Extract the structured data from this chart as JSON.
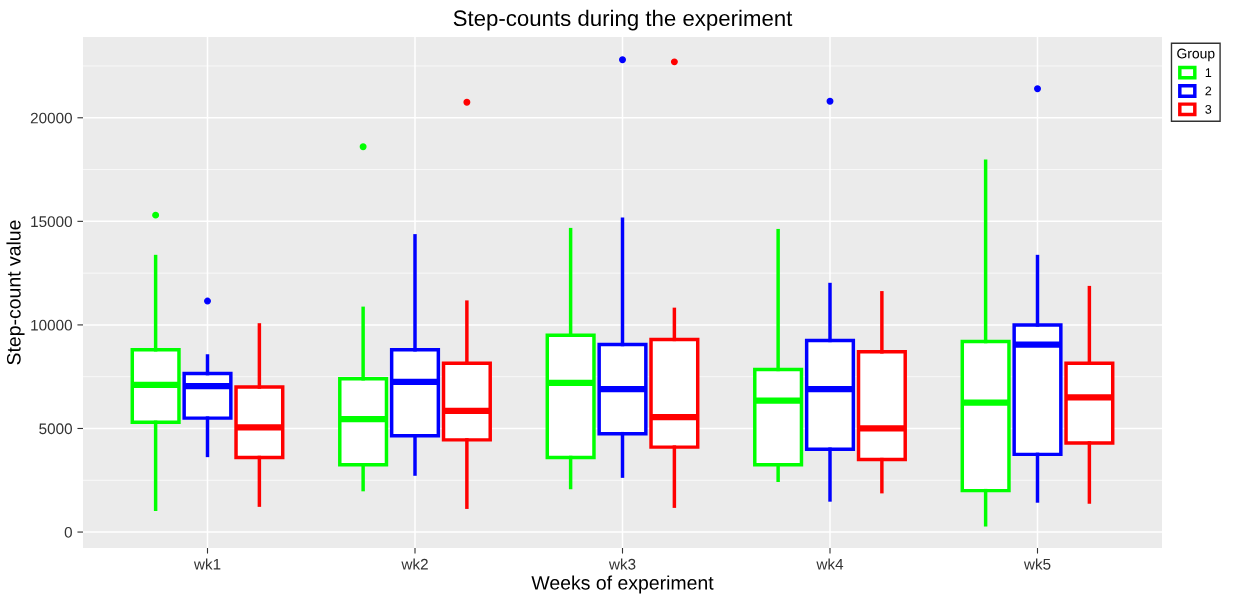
{
  "chart_data": {
    "type": "box",
    "title": "Step-counts during the experiment",
    "xlabel": "Weeks of experiment",
    "ylabel": "Step-count value",
    "legend_title": "Group",
    "categories": [
      "wk1",
      "wk2",
      "wk3",
      "wk4",
      "wk5"
    ],
    "ylim": [
      -770,
      23900
    ],
    "yticks": [
      0,
      5000,
      10000,
      15000,
      20000
    ],
    "grid": true,
    "legend": "top right",
    "series": [
      {
        "name": "1",
        "color": "#00ff00",
        "boxes": [
          {
            "low": 1100,
            "q1": 5300,
            "median": 7100,
            "q3": 8800,
            "high": 13300,
            "outliers": [
              15300
            ]
          },
          {
            "low": 2050,
            "q1": 3250,
            "median": 5450,
            "q3": 7400,
            "high": 10800,
            "outliers": [
              18600
            ]
          },
          {
            "low": 2150,
            "q1": 3600,
            "median": 7200,
            "q3": 9500,
            "high": 14600
          },
          {
            "low": 2500,
            "q1": 3250,
            "median": 6350,
            "q3": 7850,
            "high": 14550
          },
          {
            "low": 350,
            "q1": 2000,
            "median": 6250,
            "q3": 9200,
            "high": 17900
          }
        ]
      },
      {
        "name": "2",
        "color": "#0000ff",
        "boxes": [
          {
            "low": 3700,
            "q1": 5500,
            "median": 7050,
            "q3": 7650,
            "high": 8500,
            "outliers": [
              11150
            ]
          },
          {
            "low": 2800,
            "q1": 4650,
            "median": 7250,
            "q3": 8800,
            "high": 14300
          },
          {
            "low": 2700,
            "q1": 4750,
            "median": 6900,
            "q3": 9050,
            "high": 15100,
            "outliers": [
              22800
            ]
          },
          {
            "low": 1550,
            "q1": 4000,
            "median": 6900,
            "q3": 9250,
            "high": 11950,
            "outliers": [
              20800
            ]
          },
          {
            "low": 1500,
            "q1": 3750,
            "median": 9050,
            "q3": 10000,
            "high": 13300,
            "outliers": [
              21400
            ]
          }
        ]
      },
      {
        "name": "3",
        "color": "#ff0000",
        "boxes": [
          {
            "low": 1300,
            "q1": 3600,
            "median": 5050,
            "q3": 7000,
            "high": 10000
          },
          {
            "low": 1200,
            "q1": 4450,
            "median": 5850,
            "q3": 8150,
            "high": 11100,
            "outliers": [
              20750
            ]
          },
          {
            "low": 1250,
            "q1": 4100,
            "median": 5550,
            "q3": 9300,
            "high": 10750,
            "outliers": [
              22700
            ]
          },
          {
            "low": 1950,
            "q1": 3500,
            "median": 5000,
            "q3": 8700,
            "high": 11550
          },
          {
            "low": 1450,
            "q1": 4300,
            "median": 6500,
            "q3": 8150,
            "high": 11800
          }
        ]
      }
    ]
  }
}
